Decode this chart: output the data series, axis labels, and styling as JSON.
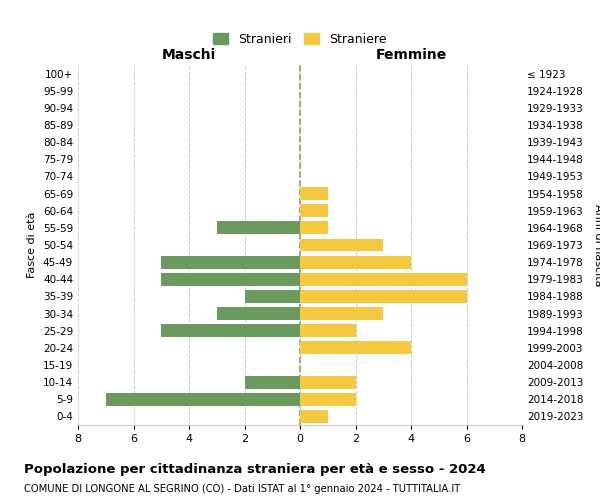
{
  "age_groups": [
    "100+",
    "95-99",
    "90-94",
    "85-89",
    "80-84",
    "75-79",
    "70-74",
    "65-69",
    "60-64",
    "55-59",
    "50-54",
    "45-49",
    "40-44",
    "35-39",
    "30-34",
    "25-29",
    "20-24",
    "15-19",
    "10-14",
    "5-9",
    "0-4"
  ],
  "birth_years": [
    "≤ 1923",
    "1924-1928",
    "1929-1933",
    "1934-1938",
    "1939-1943",
    "1944-1948",
    "1949-1953",
    "1954-1958",
    "1959-1963",
    "1964-1968",
    "1969-1973",
    "1974-1978",
    "1979-1983",
    "1984-1988",
    "1989-1993",
    "1994-1998",
    "1999-2003",
    "2004-2008",
    "2009-2013",
    "2014-2018",
    "2019-2023"
  ],
  "maschi": [
    0,
    0,
    0,
    0,
    0,
    0,
    0,
    0,
    0,
    3,
    0,
    5,
    5,
    2,
    3,
    5,
    0,
    0,
    2,
    7,
    0
  ],
  "femmine": [
    0,
    0,
    0,
    0,
    0,
    0,
    0,
    1,
    1,
    1,
    3,
    4,
    6,
    6,
    3,
    2,
    4,
    0,
    2,
    2,
    1
  ],
  "color_maschi": "#6b9a5e",
  "color_femmine": "#f5c842",
  "background_color": "#ffffff",
  "grid_color": "#cccccc",
  "title": "Popolazione per cittadinanza straniera per età e sesso - 2024",
  "subtitle": "COMUNE DI LONGONE AL SEGRINO (CO) - Dati ISTAT al 1° gennaio 2024 - TUTTITALIA.IT",
  "xlabel_left": "Maschi",
  "xlabel_right": "Femmine",
  "ylabel_left": "Fasce di età",
  "ylabel_right": "Anni di nascita",
  "legend_maschi": "Stranieri",
  "legend_femmine": "Straniere",
  "xlim": 8,
  "bar_height": 0.75
}
